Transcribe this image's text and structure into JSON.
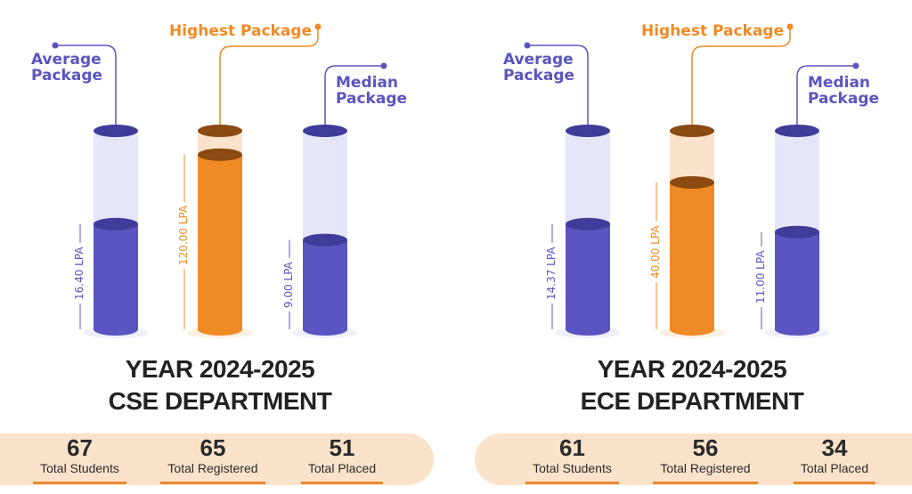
{
  "colors": {
    "purple": "#5a55c0",
    "purple_dark": "#3f3c9a",
    "purple_light": "#e6e6fb",
    "orange": "#f08a24",
    "orange_dark": "#8a4a10",
    "orange_light": "#fbe3cb",
    "text": "#222222"
  },
  "labels": {
    "average": "Average Package",
    "highest": "Highest Package",
    "median": "Median Package"
  },
  "chart_data": [
    {
      "type": "bar",
      "title": "YEAR 2024-2025",
      "subtitle": "CSE DEPARTMENT",
      "categories": [
        "Average Package",
        "Highest Package",
        "Median Package"
      ],
      "values": [
        16.4,
        120.0,
        9.0
      ],
      "value_labels": [
        "16.40 LPA",
        "120.00 LPA",
        "9.00 LPA"
      ],
      "fill_levels_percent": [
        53,
        88,
        45
      ],
      "stats": [
        {
          "value": "67",
          "label": "Total Students"
        },
        {
          "value": "65",
          "label": "Total Registered"
        },
        {
          "value": "51",
          "label": "Total Placed"
        }
      ]
    },
    {
      "type": "bar",
      "title": "YEAR 2024-2025",
      "subtitle": "ECE DEPARTMENT",
      "categories": [
        "Average Package",
        "Highest Package",
        "Median Package"
      ],
      "values": [
        14.37,
        40.0,
        11.0
      ],
      "value_labels": [
        "14.37 LPA",
        "40.00 LPA",
        "11.00 LPA"
      ],
      "fill_levels_percent": [
        53,
        74,
        49
      ],
      "stats": [
        {
          "value": "61",
          "label": "Total Students"
        },
        {
          "value": "56",
          "label": "Total Registered"
        },
        {
          "value": "34",
          "label": "Total Placed"
        }
      ]
    }
  ]
}
